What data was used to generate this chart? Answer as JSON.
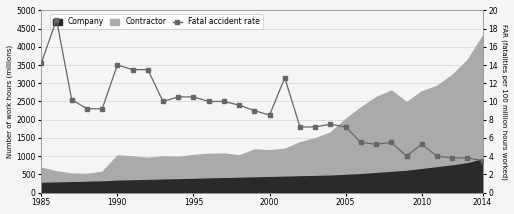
{
  "years": [
    1985,
    1986,
    1987,
    1988,
    1989,
    1990,
    1991,
    1992,
    1993,
    1994,
    1995,
    1996,
    1997,
    1998,
    1999,
    2000,
    2001,
    2002,
    2003,
    2004,
    2005,
    2006,
    2007,
    2008,
    2009,
    2010,
    2011,
    2012,
    2013,
    2014
  ],
  "company": [
    300,
    310,
    320,
    330,
    340,
    360,
    370,
    380,
    390,
    400,
    410,
    420,
    430,
    440,
    450,
    460,
    470,
    480,
    490,
    500,
    520,
    540,
    570,
    600,
    630,
    680,
    730,
    780,
    840,
    950
  ],
  "contractor": [
    380,
    270,
    200,
    180,
    230,
    660,
    620,
    570,
    600,
    580,
    620,
    640,
    640,
    580,
    730,
    700,
    730,
    900,
    1000,
    1150,
    1500,
    1800,
    2050,
    2200,
    1850,
    2100,
    2200,
    2450,
    2800,
    3350
  ],
  "far": [
    14.2,
    19.0,
    10.2,
    9.2,
    9.2,
    14.0,
    13.5,
    13.5,
    10.0,
    10.5,
    10.5,
    10.0,
    10.0,
    9.6,
    9.0,
    8.5,
    12.6,
    7.2,
    7.2,
    7.5,
    7.2,
    5.5,
    5.3,
    5.5,
    4.0,
    5.3,
    4.0,
    3.8,
    3.8,
    3.5
  ],
  "ylim_left": [
    0,
    5000
  ],
  "ylim_right": [
    0,
    20
  ],
  "yticks_left": [
    0,
    500,
    1000,
    1500,
    2000,
    2500,
    3000,
    3500,
    4000,
    4500,
    5000
  ],
  "yticks_right": [
    0,
    2,
    4,
    6,
    8,
    10,
    12,
    14,
    16,
    18,
    20
  ],
  "xticks": [
    1985,
    1990,
    1995,
    2000,
    2005,
    2010,
    2014
  ],
  "company_color": "#2a2a2a",
  "contractor_color": "#aaaaaa",
  "far_color": "#666666",
  "far_marker": "s",
  "background_color": "#f5f5f5",
  "ylabel_left": "Number of work hours (millions)",
  "ylabel_right": "FAR (fatalities per 100 million hours worked)",
  "legend_labels": [
    "Company",
    "Contractor",
    "Fatal accident rate"
  ],
  "grid_color": "#cccccc"
}
